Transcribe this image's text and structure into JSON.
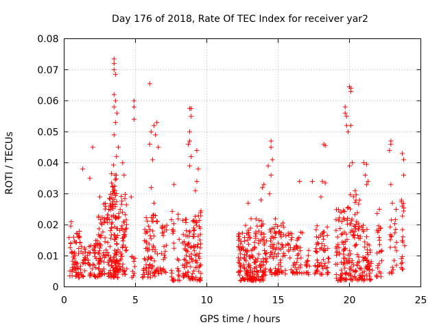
{
  "chart_data": {
    "type": "scatter",
    "title": "Day 176 of 2018, Rate Of TEC Index for receiver yar2",
    "xlabel": "GPS time / hours",
    "ylabel": "ROTI / TECUs",
    "xlim": [
      0,
      25
    ],
    "ylim": [
      0,
      0.08
    ],
    "grid": true,
    "x_ticks": [
      0,
      5,
      10,
      15,
      20,
      25
    ],
    "y_ticks": [
      0,
      0.01,
      0.02,
      0.03,
      0.04,
      0.05,
      0.06,
      0.07,
      0.08
    ],
    "x_tick_labels": [
      "0",
      "5",
      "10",
      "15",
      "20",
      "25"
    ],
    "y_tick_labels": [
      "0",
      "0.01",
      "0.02",
      "0.03",
      "0.04",
      "0.05",
      "0.06",
      "0.07",
      "0.08"
    ],
    "marker": "plus",
    "color": "#ff0000",
    "clusters": [
      {
        "x": [
          0.3,
          1.5
        ],
        "y": [
          0.003,
          0.016
        ],
        "n": 70
      },
      {
        "x": [
          0.4,
          1.2
        ],
        "y": [
          0.016,
          0.022
        ],
        "n": 8
      },
      {
        "x": [
          1.6,
          2.6
        ],
        "y": [
          0.003,
          0.015
        ],
        "n": 55
      },
      {
        "x": [
          2.4,
          3.1
        ],
        "y": [
          0.004,
          0.027
        ],
        "n": 55
      },
      {
        "x": [
          3.1,
          3.8
        ],
        "y": [
          0.003,
          0.03
        ],
        "n": 110
      },
      {
        "x": [
          3.3,
          3.7
        ],
        "y": [
          0.03,
          0.045
        ],
        "n": 18
      },
      {
        "x": [
          3.8,
          4.4
        ],
        "y": [
          0.004,
          0.03
        ],
        "n": 55
      },
      {
        "x": [
          4.7,
          5.0
        ],
        "y": [
          0.003,
          0.012
        ],
        "n": 10
      },
      {
        "x": [
          5.5,
          6.6
        ],
        "y": [
          0.003,
          0.024
        ],
        "n": 80
      },
      {
        "x": [
          6.6,
          7.2
        ],
        "y": [
          0.004,
          0.02
        ],
        "n": 25
      },
      {
        "x": [
          7.5,
          8.1
        ],
        "y": [
          0.002,
          0.025
        ],
        "n": 30
      },
      {
        "x": [
          8.3,
          9.0
        ],
        "y": [
          0.002,
          0.022
        ],
        "n": 55
      },
      {
        "x": [
          9.0,
          9.6
        ],
        "y": [
          0.002,
          0.025
        ],
        "n": 60
      },
      {
        "x": [
          12.2,
          13.0
        ],
        "y": [
          0.002,
          0.02
        ],
        "n": 80
      },
      {
        "x": [
          13.0,
          14.2
        ],
        "y": [
          0.002,
          0.022
        ],
        "n": 120
      },
      {
        "x": [
          14.4,
          15.6
        ],
        "y": [
          0.004,
          0.022
        ],
        "n": 80
      },
      {
        "x": [
          15.6,
          16.7
        ],
        "y": [
          0.004,
          0.018
        ],
        "n": 50
      },
      {
        "x": [
          16.7,
          17.2
        ],
        "y": [
          0.004,
          0.012
        ],
        "n": 15
      },
      {
        "x": [
          17.5,
          18.6
        ],
        "y": [
          0.004,
          0.02
        ],
        "n": 60
      },
      {
        "x": [
          19.0,
          19.8
        ],
        "y": [
          0.002,
          0.025
        ],
        "n": 70
      },
      {
        "x": [
          19.8,
          20.7
        ],
        "y": [
          0.002,
          0.03
        ],
        "n": 80
      },
      {
        "x": [
          20.7,
          21.6
        ],
        "y": [
          0.002,
          0.02
        ],
        "n": 60
      },
      {
        "x": [
          21.9,
          22.3
        ],
        "y": [
          0.003,
          0.024
        ],
        "n": 25
      },
      {
        "x": [
          22.8,
          23.3
        ],
        "y": [
          0.004,
          0.025
        ],
        "n": 22
      },
      {
        "x": [
          23.6,
          23.9
        ],
        "y": [
          0.005,
          0.028
        ],
        "n": 18
      }
    ],
    "outliers": [
      {
        "x": 0.5,
        "y": 0.021
      },
      {
        "x": 1.3,
        "y": 0.038
      },
      {
        "x": 1.8,
        "y": 0.035
      },
      {
        "x": 2.0,
        "y": 0.045
      },
      {
        "x": 2.5,
        "y": 0.029
      },
      {
        "x": 3.5,
        "y": 0.0735
      },
      {
        "x": 3.5,
        "y": 0.072
      },
      {
        "x": 3.5,
        "y": 0.07
      },
      {
        "x": 3.6,
        "y": 0.0685
      },
      {
        "x": 3.5,
        "y": 0.062
      },
      {
        "x": 3.6,
        "y": 0.06
      },
      {
        "x": 3.5,
        "y": 0.058
      },
      {
        "x": 3.7,
        "y": 0.056
      },
      {
        "x": 3.6,
        "y": 0.053
      },
      {
        "x": 3.5,
        "y": 0.049
      },
      {
        "x": 3.8,
        "y": 0.045
      },
      {
        "x": 4.1,
        "y": 0.04
      },
      {
        "x": 4.2,
        "y": 0.036
      },
      {
        "x": 4.9,
        "y": 0.06
      },
      {
        "x": 4.9,
        "y": 0.058
      },
      {
        "x": 4.9,
        "y": 0.054
      },
      {
        "x": 4.7,
        "y": 0.029
      },
      {
        "x": 6.0,
        "y": 0.0655
      },
      {
        "x": 6.1,
        "y": 0.05
      },
      {
        "x": 6.3,
        "y": 0.052
      },
      {
        "x": 6.5,
        "y": 0.053
      },
      {
        "x": 6.4,
        "y": 0.049
      },
      {
        "x": 6.0,
        "y": 0.046
      },
      {
        "x": 6.2,
        "y": 0.041
      },
      {
        "x": 6.1,
        "y": 0.032
      },
      {
        "x": 6.3,
        "y": 0.027
      },
      {
        "x": 6.6,
        "y": 0.045
      },
      {
        "x": 7.7,
        "y": 0.033
      },
      {
        "x": 8.8,
        "y": 0.0575
      },
      {
        "x": 8.9,
        "y": 0.0575
      },
      {
        "x": 8.9,
        "y": 0.055
      },
      {
        "x": 8.8,
        "y": 0.05
      },
      {
        "x": 8.8,
        "y": 0.047
      },
      {
        "x": 8.7,
        "y": 0.046
      },
      {
        "x": 8.9,
        "y": 0.042
      },
      {
        "x": 8.8,
        "y": 0.039
      },
      {
        "x": 9.3,
        "y": 0.044
      },
      {
        "x": 9.4,
        "y": 0.038
      },
      {
        "x": 9.3,
        "y": 0.034
      },
      {
        "x": 9.2,
        "y": 0.031
      },
      {
        "x": 12.9,
        "y": 0.027
      },
      {
        "x": 13.8,
        "y": 0.028
      },
      {
        "x": 13.9,
        "y": 0.032
      },
      {
        "x": 14.0,
        "y": 0.033
      },
      {
        "x": 14.3,
        "y": 0.039
      },
      {
        "x": 14.5,
        "y": 0.047
      },
      {
        "x": 14.5,
        "y": 0.045
      },
      {
        "x": 14.6,
        "y": 0.041
      },
      {
        "x": 14.5,
        "y": 0.036
      },
      {
        "x": 14.4,
        "y": 0.03
      },
      {
        "x": 16.5,
        "y": 0.034
      },
      {
        "x": 17.4,
        "y": 0.034
      },
      {
        "x": 18.2,
        "y": 0.046
      },
      {
        "x": 18.3,
        "y": 0.0455
      },
      {
        "x": 18.1,
        "y": 0.034
      },
      {
        "x": 18.3,
        "y": 0.0335
      },
      {
        "x": 18.0,
        "y": 0.029
      },
      {
        "x": 19.7,
        "y": 0.058
      },
      {
        "x": 19.7,
        "y": 0.056
      },
      {
        "x": 19.8,
        "y": 0.055
      },
      {
        "x": 19.8,
        "y": 0.052
      },
      {
        "x": 19.9,
        "y": 0.05
      },
      {
        "x": 20.0,
        "y": 0.0645
      },
      {
        "x": 20.1,
        "y": 0.064
      },
      {
        "x": 20.1,
        "y": 0.063
      },
      {
        "x": 20.1,
        "y": 0.052
      },
      {
        "x": 20.2,
        "y": 0.04
      },
      {
        "x": 20.0,
        "y": 0.039
      },
      {
        "x": 20.4,
        "y": 0.031
      },
      {
        "x": 21.0,
        "y": 0.04
      },
      {
        "x": 21.2,
        "y": 0.0395
      },
      {
        "x": 21.1,
        "y": 0.036
      },
      {
        "x": 21.3,
        "y": 0.034
      },
      {
        "x": 21.2,
        "y": 0.033
      },
      {
        "x": 22.1,
        "y": 0.025
      },
      {
        "x": 22.9,
        "y": 0.047
      },
      {
        "x": 22.9,
        "y": 0.046
      },
      {
        "x": 22.8,
        "y": 0.044
      },
      {
        "x": 22.9,
        "y": 0.033
      },
      {
        "x": 23.0,
        "y": 0.027
      },
      {
        "x": 23.7,
        "y": 0.043
      },
      {
        "x": 23.8,
        "y": 0.041
      },
      {
        "x": 23.8,
        "y": 0.036
      },
      {
        "x": 23.7,
        "y": 0.026
      }
    ]
  }
}
